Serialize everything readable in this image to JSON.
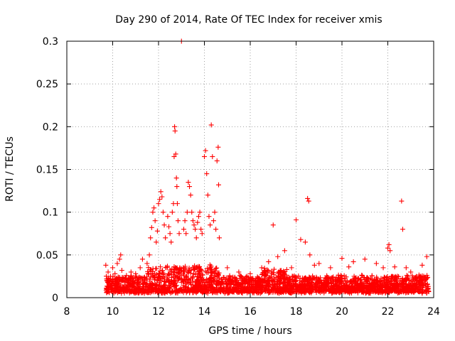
{
  "chart_data": {
    "type": "scatter",
    "title": "Day 290 of 2014, Rate Of TEC Index for receiver xmis",
    "xlabel": "GPS time / hours",
    "ylabel": "ROTI / TECUs",
    "xlim": [
      8,
      24
    ],
    "ylim": [
      0,
      0.3
    ],
    "xticks": [
      8,
      10,
      12,
      14,
      16,
      18,
      20,
      22,
      24
    ],
    "yticks": [
      0,
      0.05,
      0.1,
      0.15,
      0.2,
      0.25,
      0.3
    ],
    "xtick_labels": [
      "8",
      "10",
      "12",
      "14",
      "16",
      "18",
      "20",
      "22",
      "24"
    ],
    "ytick_labels": [
      "0",
      "0.05",
      "0.1",
      "0.15",
      "0.2",
      "0.25",
      "0.3"
    ],
    "grid": true,
    "marker": "+",
    "color": "#ff0000",
    "series": [
      {
        "name": "ROTI",
        "points": [
          [
            9.7,
            0.038
          ],
          [
            9.8,
            0.03
          ],
          [
            9.9,
            0.022
          ],
          [
            10.0,
            0.035
          ],
          [
            10.1,
            0.028
          ],
          [
            10.2,
            0.04
          ],
          [
            10.3,
            0.045
          ],
          [
            10.35,
            0.05
          ],
          [
            10.4,
            0.032
          ],
          [
            10.6,
            0.026
          ],
          [
            10.8,
            0.03
          ],
          [
            11.0,
            0.028
          ],
          [
            11.2,
            0.035
          ],
          [
            11.3,
            0.045
          ],
          [
            11.5,
            0.04
          ],
          [
            11.6,
            0.05
          ],
          [
            11.65,
            0.07
          ],
          [
            11.7,
            0.082
          ],
          [
            11.75,
            0.1
          ],
          [
            11.8,
            0.105
          ],
          [
            11.85,
            0.09
          ],
          [
            11.9,
            0.065
          ],
          [
            11.95,
            0.078
          ],
          [
            12.0,
            0.11
          ],
          [
            12.05,
            0.115
          ],
          [
            12.1,
            0.124
          ],
          [
            12.15,
            0.118
          ],
          [
            12.2,
            0.1
          ],
          [
            12.25,
            0.085
          ],
          [
            12.3,
            0.07
          ],
          [
            12.4,
            0.095
          ],
          [
            12.45,
            0.083
          ],
          [
            12.5,
            0.075
          ],
          [
            12.55,
            0.065
          ],
          [
            12.6,
            0.1
          ],
          [
            12.65,
            0.11
          ],
          [
            12.68,
            0.165
          ],
          [
            12.7,
            0.2
          ],
          [
            12.72,
            0.195
          ],
          [
            12.75,
            0.168
          ],
          [
            12.78,
            0.14
          ],
          [
            12.8,
            0.13
          ],
          [
            12.82,
            0.11
          ],
          [
            12.85,
            0.09
          ],
          [
            12.9,
            0.075
          ],
          [
            13.0,
            0.3
          ],
          [
            13.1,
            0.08
          ],
          [
            13.15,
            0.09
          ],
          [
            13.2,
            0.075
          ],
          [
            13.25,
            0.1
          ],
          [
            13.3,
            0.135
          ],
          [
            13.35,
            0.13
          ],
          [
            13.4,
            0.12
          ],
          [
            13.45,
            0.1
          ],
          [
            13.5,
            0.09
          ],
          [
            13.55,
            0.085
          ],
          [
            13.6,
            0.08
          ],
          [
            13.65,
            0.07
          ],
          [
            13.7,
            0.088
          ],
          [
            13.75,
            0.095
          ],
          [
            13.8,
            0.1
          ],
          [
            13.85,
            0.08
          ],
          [
            13.9,
            0.075
          ],
          [
            14.0,
            0.165
          ],
          [
            14.05,
            0.172
          ],
          [
            14.1,
            0.145
          ],
          [
            14.15,
            0.12
          ],
          [
            14.2,
            0.095
          ],
          [
            14.25,
            0.085
          ],
          [
            14.3,
            0.202
          ],
          [
            14.35,
            0.165
          ],
          [
            14.4,
            0.09
          ],
          [
            14.45,
            0.1
          ],
          [
            14.5,
            0.08
          ],
          [
            14.55,
            0.16
          ],
          [
            14.6,
            0.176
          ],
          [
            14.62,
            0.132
          ],
          [
            14.65,
            0.07
          ],
          [
            15.0,
            0.035
          ],
          [
            15.5,
            0.03
          ],
          [
            16.0,
            0.028
          ],
          [
            16.5,
            0.035
          ],
          [
            16.8,
            0.042
          ],
          [
            17.0,
            0.085
          ],
          [
            17.2,
            0.048
          ],
          [
            17.5,
            0.055
          ],
          [
            17.8,
            0.035
          ],
          [
            18.0,
            0.091
          ],
          [
            18.2,
            0.068
          ],
          [
            18.4,
            0.065
          ],
          [
            18.5,
            0.116
          ],
          [
            18.55,
            0.113
          ],
          [
            18.6,
            0.05
          ],
          [
            18.8,
            0.038
          ],
          [
            19.0,
            0.04
          ],
          [
            19.5,
            0.035
          ],
          [
            20.0,
            0.046
          ],
          [
            20.3,
            0.036
          ],
          [
            20.5,
            0.042
          ],
          [
            21.0,
            0.045
          ],
          [
            21.5,
            0.04
          ],
          [
            21.8,
            0.035
          ],
          [
            22.0,
            0.058
          ],
          [
            22.05,
            0.062
          ],
          [
            22.1,
            0.055
          ],
          [
            22.3,
            0.036
          ],
          [
            22.6,
            0.113
          ],
          [
            22.65,
            0.08
          ],
          [
            22.8,
            0.035
          ],
          [
            23.0,
            0.03
          ],
          [
            23.5,
            0.038
          ],
          [
            23.7,
            0.048
          ]
        ]
      }
    ]
  }
}
